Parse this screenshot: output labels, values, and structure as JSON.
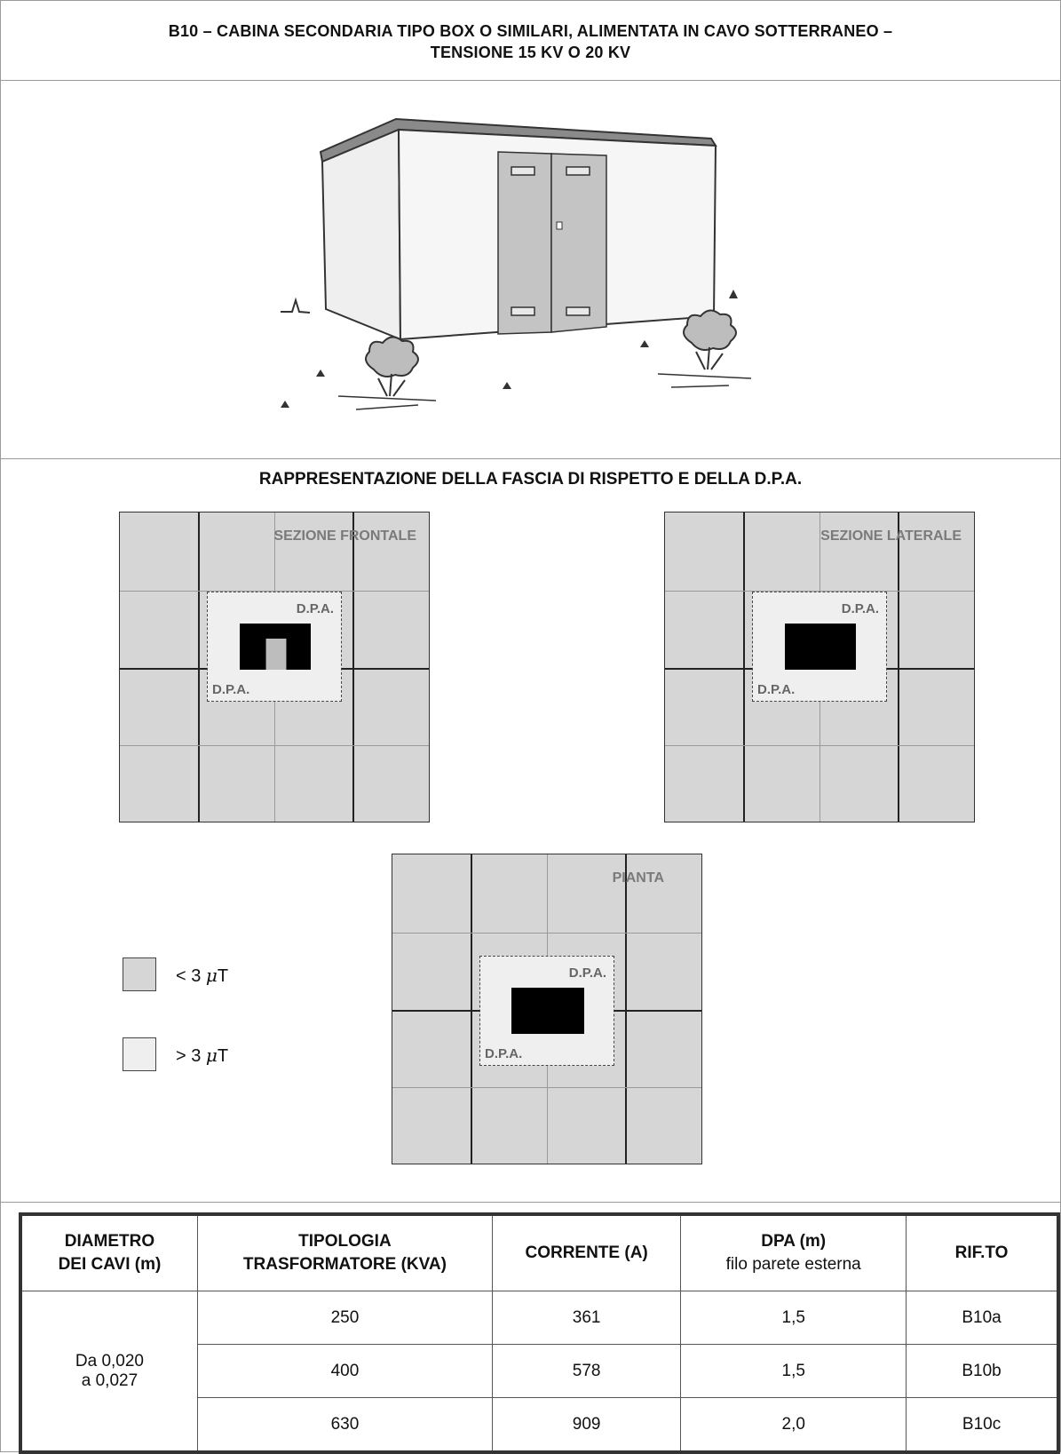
{
  "header": {
    "title_line1": "B10 – CABINA SECONDARIA TIPO BOX O SIMILARI, ALIMENTATA IN CAVO SOTTERRANEO –",
    "title_line2": "TENSIONE 15 KV O 20 KV"
  },
  "section": {
    "title": "RAPPRESENTAZIONE DELLA FASCIA DI RISPETTO E DELLA D.P.A."
  },
  "views": {
    "frontal": {
      "label": "SEZIONE FRONTALE",
      "dpa_top": "D.P.A.",
      "dpa_bottom": "D.P.A."
    },
    "lateral": {
      "label": "SEZIONE LATERALE",
      "dpa_top": "D.P.A.",
      "dpa_bottom": "D.P.A."
    },
    "plan": {
      "label": "PIANTA",
      "dpa_top": "D.P.A.",
      "dpa_bottom": "D.P.A."
    }
  },
  "legend": {
    "below": {
      "prefix": "< 3 ",
      "unit_mu": "μ",
      "unit": "T",
      "color": "#d6d6d6"
    },
    "above": {
      "prefix": "> 3 ",
      "unit_mu": "μ",
      "unit": "T",
      "color": "#efefef"
    }
  },
  "table": {
    "headers": {
      "diameter_l1": "DIAMETRO",
      "diameter_l2": "DEI CAVI (m)",
      "type_l1": "TIPOLOGIA",
      "type_l2": "TRASFORMATORE (KVA)",
      "current": "CORRENTE (A)",
      "dpa_l1": "DPA (m)",
      "dpa_l2": "filo parete esterna",
      "ref": "RIF.TO"
    },
    "diameter_l1": "Da 0,020",
    "diameter_l2": "a 0,027",
    "rows": [
      {
        "kva": "250",
        "current": "361",
        "dpa": "1,5",
        "ref": "B10a"
      },
      {
        "kva": "400",
        "current": "578",
        "dpa": "1,5",
        "ref": "B10b"
      },
      {
        "kva": "630",
        "current": "909",
        "dpa": "2,0",
        "ref": "B10c"
      }
    ]
  }
}
